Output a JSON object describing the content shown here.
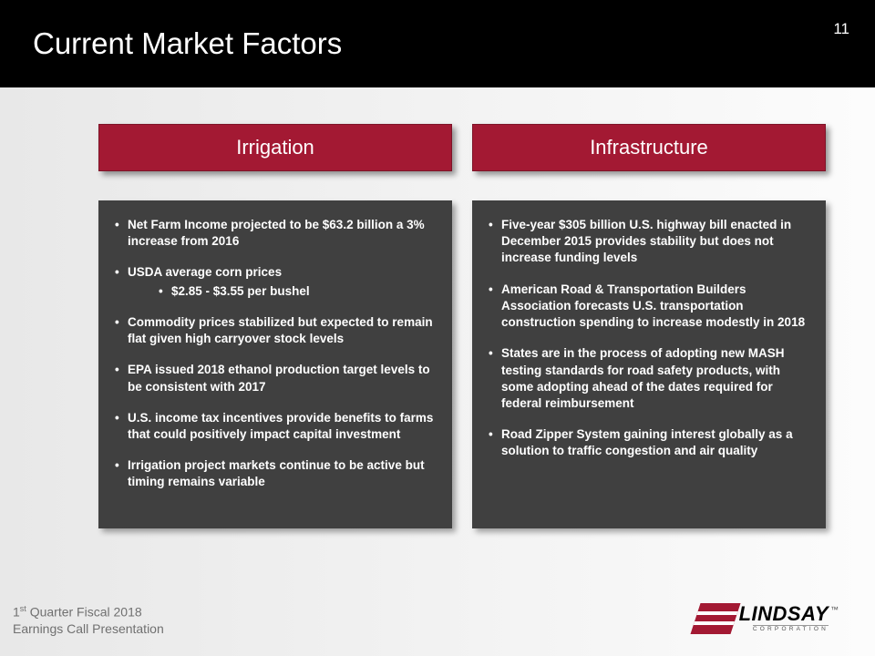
{
  "header": {
    "title": "Current Market Factors",
    "page_number": "11",
    "bg_color": "#000000",
    "title_color": "#ffffff",
    "title_fontsize": 33
  },
  "columns": [
    {
      "heading": "Irrigation",
      "heading_bg": "#a31933",
      "heading_color": "#ffffff",
      "body_bg": "#404040",
      "body_color": "#ffffff",
      "items": [
        {
          "text": "Net Farm Income projected to be $63.2 billion a 3% increase from 2016"
        },
        {
          "text": "USDA average corn prices",
          "sub": [
            "$2.85 - $3.55 per bushel"
          ]
        },
        {
          "text": "Commodity prices stabilized but expected to remain flat given high carryover stock levels"
        },
        {
          "text": "EPA issued 2018 ethanol production target levels to be consistent with 2017"
        },
        {
          "text": "U.S. income tax incentives provide benefits to farms that could positively impact capital investment"
        },
        {
          "text": "Irrigation project markets continue to be active but timing remains variable"
        }
      ]
    },
    {
      "heading": "Infrastructure",
      "heading_bg": "#a31933",
      "heading_color": "#ffffff",
      "body_bg": "#404040",
      "body_color": "#ffffff",
      "items": [
        {
          "text": "Five-year $305 billion U.S. highway bill enacted in December 2015 provides stability but does not increase funding levels"
        },
        {
          "text": "American Road & Transportation Builders Association forecasts U.S. transportation construction spending to increase modestly in 2018"
        },
        {
          "text": "States are in the process of adopting new MASH testing standards for road safety products, with some adopting ahead of the dates required for federal reimbursement"
        },
        {
          "text": "Road Zipper System gaining interest globally as a solution to traffic congestion and air quality"
        }
      ]
    }
  ],
  "footer": {
    "line1_pre": "1",
    "line1_sup": "st",
    "line1_post": " Quarter Fiscal 2018",
    "line2": "Earnings Call Presentation",
    "color": "#707070"
  },
  "logo": {
    "name": "LINDSAY",
    "sub": "CORPORATION",
    "tm": "™",
    "mark_color": "#a31933"
  }
}
